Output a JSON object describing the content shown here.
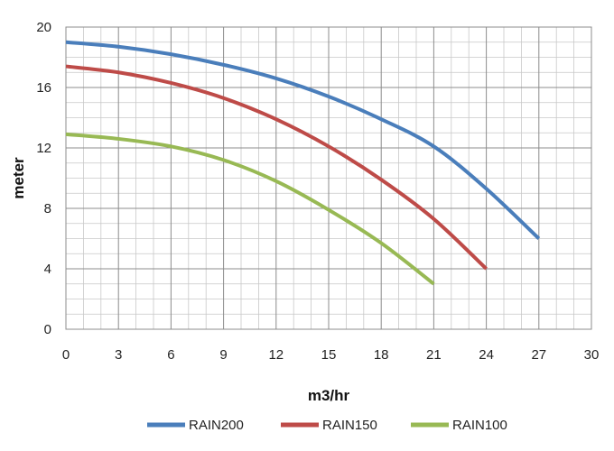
{
  "chart_data": {
    "type": "line",
    "title": "",
    "xlabel": "m3/hr",
    "ylabel": "meter",
    "xlim": [
      0,
      30
    ],
    "ylim": [
      0,
      20
    ],
    "x_ticks": [
      0,
      3,
      6,
      9,
      12,
      15,
      18,
      21,
      24,
      27,
      30
    ],
    "y_ticks": [
      0,
      4,
      8,
      12,
      16,
      20
    ],
    "x_minor_step": 1,
    "y_minor_step": 1,
    "grid": true,
    "legend_position": "bottom",
    "series": [
      {
        "name": "RAIN200",
        "color": "#4a7ebb",
        "x": [
          0,
          3,
          6,
          9,
          12,
          15,
          18,
          21,
          24,
          27
        ],
        "y": [
          19.0,
          18.7,
          18.2,
          17.5,
          16.6,
          15.4,
          13.9,
          12.1,
          9.3,
          6.0
        ]
      },
      {
        "name": "RAIN150",
        "color": "#be4b48",
        "x": [
          0,
          3,
          6,
          9,
          12,
          15,
          18,
          21,
          24
        ],
        "y": [
          17.4,
          17.0,
          16.3,
          15.3,
          13.9,
          12.1,
          9.9,
          7.3,
          4.0
        ]
      },
      {
        "name": "RAIN100",
        "color": "#98b954",
        "x": [
          0,
          3,
          6,
          9,
          12,
          15,
          18,
          21
        ],
        "y": [
          12.9,
          12.6,
          12.1,
          11.2,
          9.8,
          7.9,
          5.7,
          3.0
        ]
      }
    ]
  }
}
